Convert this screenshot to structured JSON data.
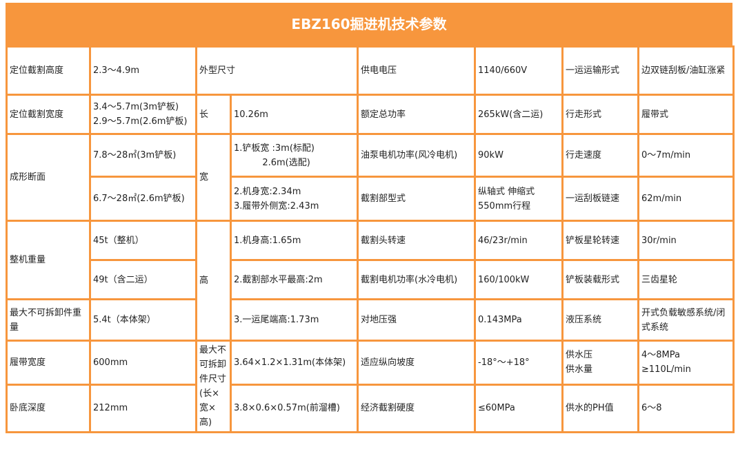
{
  "title": "EBZ160掘进机技术参数",
  "colors": {
    "border": "#F7963D",
    "header_bg": "#F7963D",
    "header_text": "#FFFFFF"
  },
  "rows": {
    "r1": [
      "定位截割高度",
      "2.3～4.9m",
      "外型尺寸",
      "供电电压",
      "1140/660V",
      "一运运输形式",
      "边双链刮板/油缸涨紧"
    ],
    "r2": [
      "定位截割宽度",
      "3.4～5.7m(3m铲板)\n2.9～5.7m(2.6m铲板)",
      "长",
      "10.26m",
      "额定总功率",
      "265kW(含二运)",
      "行走形式",
      "履带式"
    ],
    "r3": [
      "成形断面",
      "7.8～28㎡(3m铲板)",
      "宽",
      "1.铲板宽 :3m(标配)\n          2.6m(选配)",
      "油泵电机功率(风冷电机)",
      "90kW",
      "行走速度",
      "0～7m/min"
    ],
    "r4": [
      "6.7～28㎡(2.6m铲板)",
      "2.机身宽:2.34m\n3.履带外侧宽:2.43m",
      "截割部型式",
      "纵轴式 伸缩式\n550mm行程",
      "一运刮板链速",
      "62m/min"
    ],
    "r5": [
      "整机重量",
      "45t（整机）",
      "高",
      "1.机身高:1.65m",
      "截割头转速",
      "46/23r/min",
      "铲板星轮转速",
      "30r/min"
    ],
    "r6": [
      "49t（含二运）",
      "2.截割部水平最高:2m",
      "截割电机功率(水冷电机)",
      "160/100kW",
      "铲板装载形式",
      "三齿星轮"
    ],
    "r7": [
      "最大不可拆卸件重量",
      "5.4t（本体架）",
      "3.一运尾端高:1.73m",
      "对地压强",
      "0.143MPa",
      "液压系统",
      "开式负载敏感系统/闭式系统"
    ],
    "r8": [
      "履带宽度",
      "600mm",
      "最大不可拆卸件尺寸(长×宽×高)",
      "3.64×1.2×1.31m(本体架)",
      "适应纵向坡度",
      "-18°～+18°",
      "供水压\n供水量",
      "4～8MPa\n≥110L/min"
    ],
    "r9": [
      "卧底深度",
      "212mm",
      "3.8×0.6×0.57m(前溜槽)",
      "经济截割硬度",
      "≤60MPa",
      "供水的PH值",
      "6～8"
    ]
  }
}
